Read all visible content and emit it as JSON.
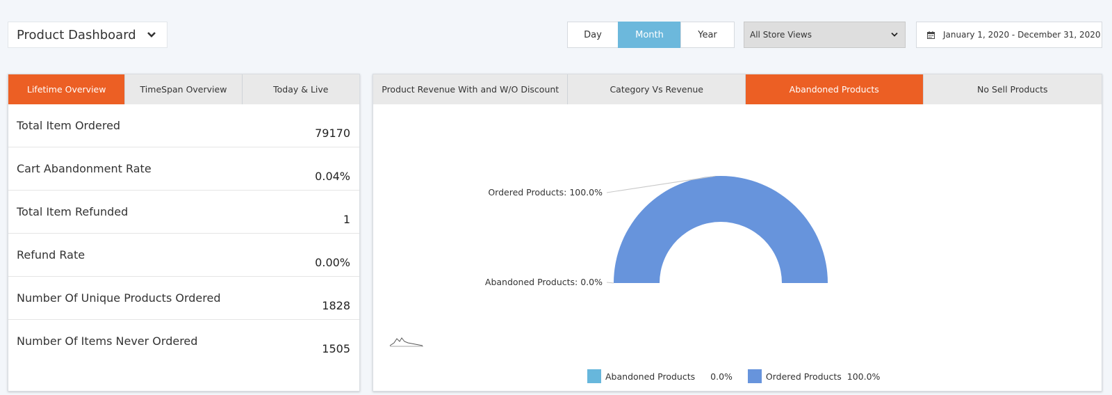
{
  "header": {
    "title": "Product Dashboard",
    "time_buttons": [
      "Day",
      "Month",
      "Year"
    ],
    "active_time": "Month",
    "store_view": "All Store Views",
    "date_range": "January 1, 2020 - December 31, 2020"
  },
  "left_panel": {
    "tabs": [
      "Lifetime Overview",
      "TimeSpan Overview",
      "Today & Live"
    ],
    "active_tab": "Lifetime Overview",
    "stats": [
      {
        "label": "Total Item Ordered",
        "value": "79170"
      },
      {
        "label": "Cart Abandonment Rate",
        "value": "0.04%"
      },
      {
        "label": "Total Item Refunded",
        "value": "1"
      },
      {
        "label": "Refund Rate",
        "value": "0.00%"
      },
      {
        "label": "Number Of Unique Products Ordered",
        "value": "1828"
      },
      {
        "label": "Number Of Items Never Ordered",
        "value": "1505"
      }
    ]
  },
  "right_panel": {
    "tabs": [
      "Product Revenue With and W/O Discount",
      "Category Vs Revenue",
      "Abandoned Products",
      "No Sell Products"
    ],
    "active_tab": "Abandoned Products"
  },
  "chart_data": {
    "type": "pie",
    "variant": "semi-donut",
    "categories": [
      "Abandoned Products",
      "Ordered Products"
    ],
    "values": [
      0.0,
      100.0
    ],
    "data_labels": [
      "Abandoned Products: 0.0%",
      "Ordered Products: 100.0%"
    ],
    "legend": [
      {
        "name": "Abandoned Products",
        "value": "0.0%"
      },
      {
        "name": "Ordered Products",
        "value": "100.0%"
      }
    ],
    "legend_placement": "bottom-center",
    "colors": [
      "#67b7dc",
      "#6794dc"
    ]
  },
  "colors": {
    "accent_orange": "#ec5f24",
    "active_blue": "#6cb8dc",
    "background": "#f3f6fa"
  },
  "icons": {
    "title_dropdown": "chevron-down-icon",
    "date": "calendar-icon",
    "chart_logo": "amcharts-logo-icon"
  }
}
